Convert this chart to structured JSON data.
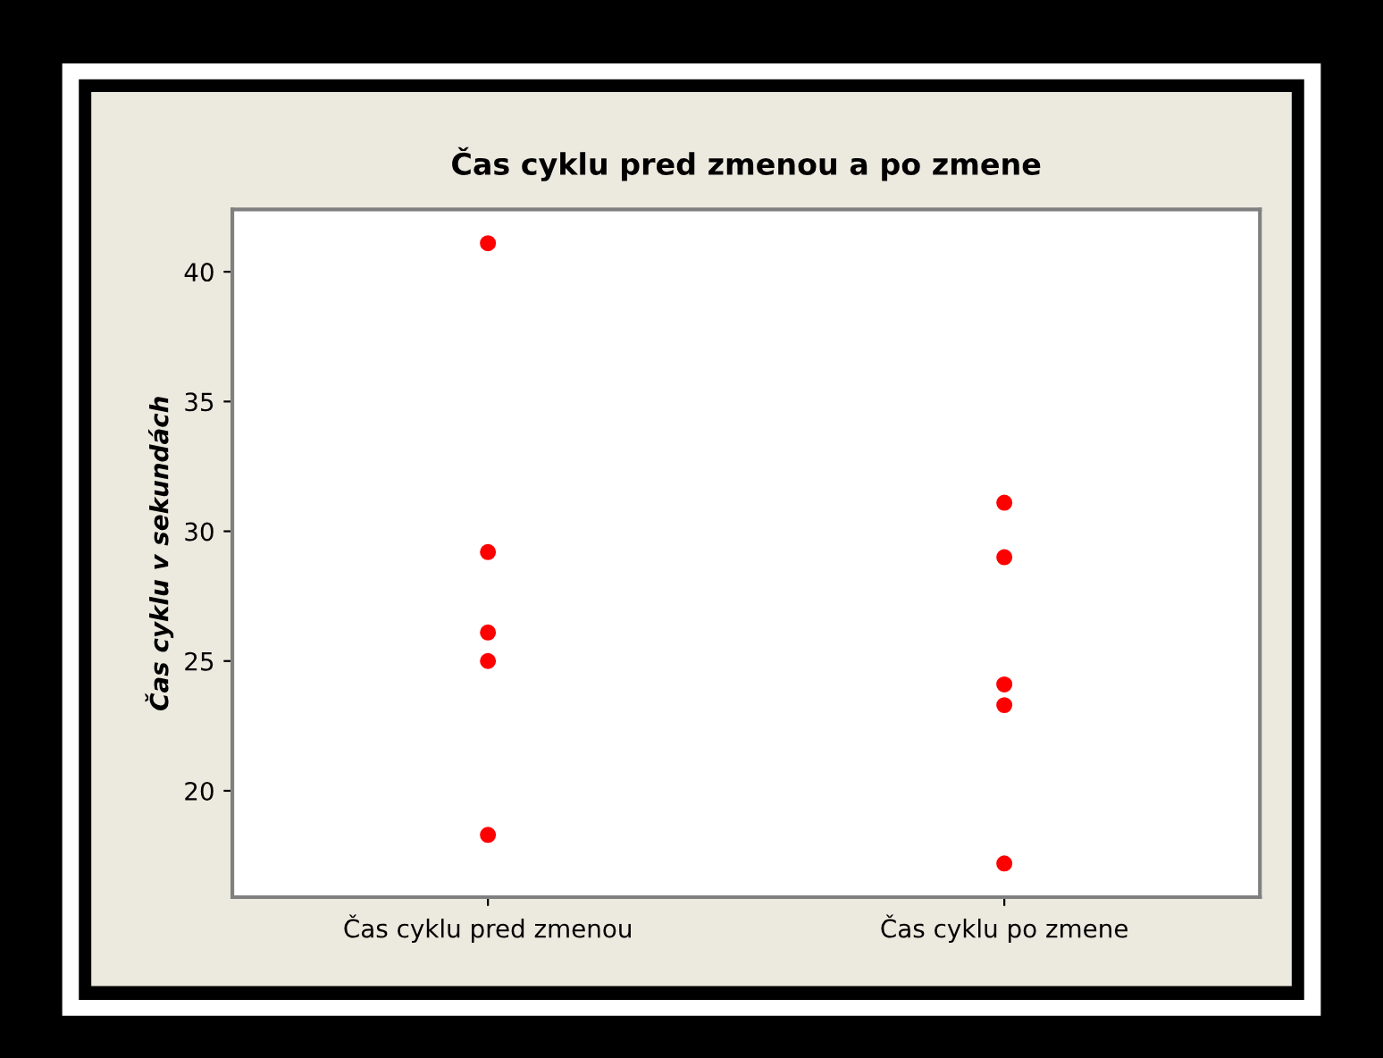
{
  "chart_data": {
    "type": "scatter",
    "title": "Čas cyklu pred zmenou a po zmene",
    "ylabel": "Čas cyklu v sekundách",
    "categories": [
      "Čas cyklu pred zmenou",
      "Čas cyklu po zmene"
    ],
    "series": [
      {
        "color": "#ff0000",
        "x": [
          "Čas cyklu pred zmenou",
          "Čas cyklu pred zmenou",
          "Čas cyklu pred zmenou",
          "Čas cyklu pred zmenou",
          "Čas cyklu pred zmenou"
        ],
        "values": [
          41.1,
          29.2,
          26.1,
          25.0,
          18.3
        ]
      },
      {
        "color": "#ff0000",
        "x": [
          "Čas cyklu po zmene",
          "Čas cyklu po zmene",
          "Čas cyklu po zmene",
          "Čas cyklu po zmene",
          "Čas cyklu po zmene"
        ],
        "values": [
          31.1,
          29.0,
          24.1,
          23.3,
          17.2
        ]
      }
    ],
    "ylim": [
      15.9,
      42.4
    ],
    "yticks": [
      20,
      25,
      30,
      35,
      40
    ],
    "grid": false,
    "legend": false,
    "marker": "circle"
  }
}
